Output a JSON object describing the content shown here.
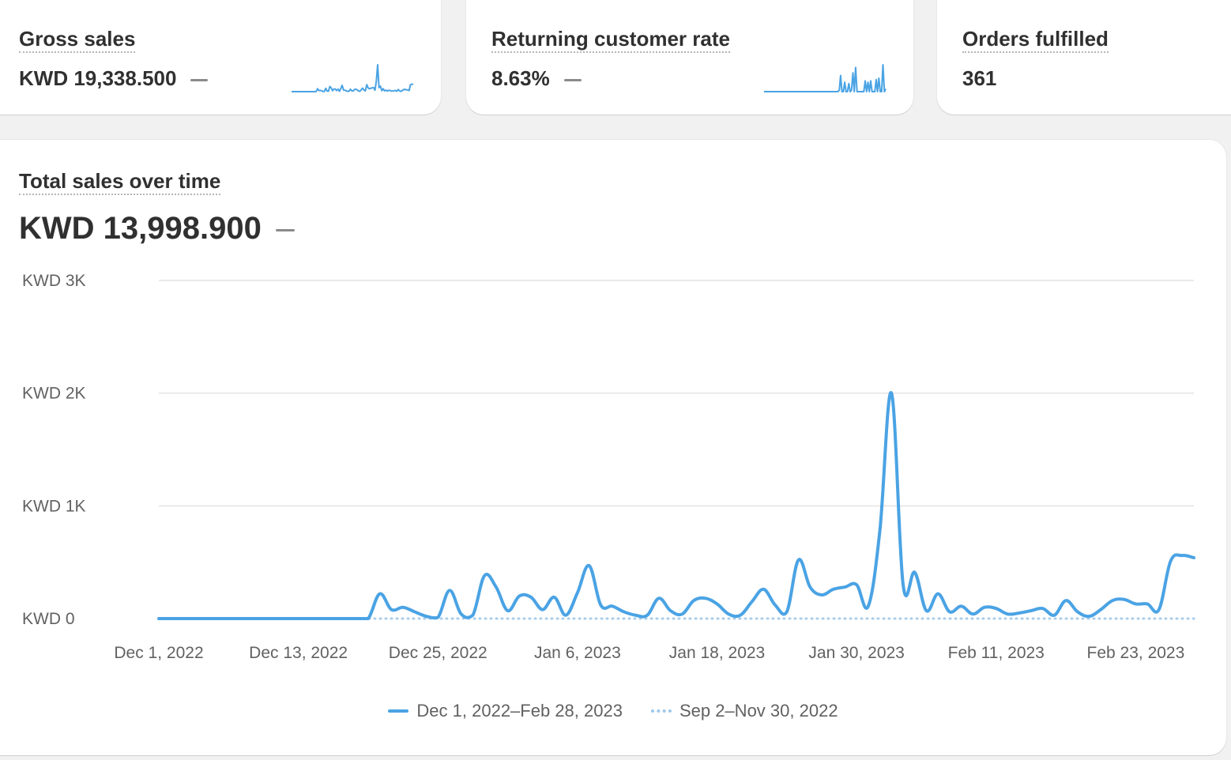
{
  "colors": {
    "series_current": "#4aa3e4",
    "series_previous": "#a9cdea",
    "grid": "#e3e3e3"
  },
  "metrics": [
    {
      "title": "Gross sales",
      "value": "KWD 19,338.500",
      "trend": "—"
    },
    {
      "title": "Returning customer rate",
      "value": "8.63%",
      "trend": "—"
    },
    {
      "title": "Orders fulfilled",
      "value": "361"
    }
  ],
  "main": {
    "title": "Total sales over time",
    "value": "KWD 13,998.900",
    "trend": "—"
  },
  "legend": [
    {
      "label": "Dec 1, 2022–Feb 28, 2023",
      "style": "solid"
    },
    {
      "label": "Sep 2–Nov 30, 2022",
      "style": "dotted"
    }
  ],
  "chart_data": {
    "type": "line",
    "title": "Total sales over time",
    "xlabel": "",
    "ylabel": "",
    "y_ticks": [
      "KWD 0",
      "KWD 1K",
      "KWD 2K",
      "KWD 3K"
    ],
    "ylim": [
      0,
      3000
    ],
    "x_ticks": [
      "Dec 1, 2022",
      "Dec 13, 2022",
      "Dec 25, 2022",
      "Jan 6, 2023",
      "Jan 18, 2023",
      "Jan 30, 2023",
      "Feb 11, 2023",
      "Feb 23, 2023"
    ],
    "grid": true,
    "legend_position": "bottom-center",
    "x": [
      "Dec 1",
      "Dec 2",
      "Dec 3",
      "Dec 4",
      "Dec 5",
      "Dec 6",
      "Dec 7",
      "Dec 8",
      "Dec 9",
      "Dec 10",
      "Dec 11",
      "Dec 12",
      "Dec 13",
      "Dec 14",
      "Dec 15",
      "Dec 16",
      "Dec 17",
      "Dec 18",
      "Dec 19",
      "Dec 20",
      "Dec 21",
      "Dec 22",
      "Dec 23",
      "Dec 24",
      "Dec 25",
      "Dec 26",
      "Dec 27",
      "Dec 28",
      "Dec 29",
      "Dec 30",
      "Dec 31",
      "Jan 1",
      "Jan 2",
      "Jan 3",
      "Jan 4",
      "Jan 5",
      "Jan 6",
      "Jan 7",
      "Jan 8",
      "Jan 9",
      "Jan 10",
      "Jan 11",
      "Jan 12",
      "Jan 13",
      "Jan 14",
      "Jan 15",
      "Jan 16",
      "Jan 17",
      "Jan 18",
      "Jan 19",
      "Jan 20",
      "Jan 21",
      "Jan 22",
      "Jan 23",
      "Jan 24",
      "Jan 25",
      "Jan 26",
      "Jan 27",
      "Jan 28",
      "Jan 29",
      "Jan 30",
      "Jan 31",
      "Feb 1",
      "Feb 2",
      "Feb 3",
      "Feb 4",
      "Feb 5",
      "Feb 6",
      "Feb 7",
      "Feb 8",
      "Feb 9",
      "Feb 10",
      "Feb 11",
      "Feb 12",
      "Feb 13",
      "Feb 14",
      "Feb 15",
      "Feb 16",
      "Feb 17",
      "Feb 18",
      "Feb 19",
      "Feb 20",
      "Feb 21",
      "Feb 22",
      "Feb 23",
      "Feb 24",
      "Feb 25",
      "Feb 26",
      "Feb 27",
      "Feb 28"
    ],
    "series": [
      {
        "name": "Dec 1, 2022–Feb 28, 2023",
        "style": "solid",
        "values": [
          0,
          0,
          0,
          0,
          0,
          0,
          0,
          0,
          0,
          0,
          0,
          0,
          0,
          0,
          0,
          0,
          0,
          0,
          0,
          220,
          80,
          100,
          60,
          20,
          10,
          250,
          40,
          30,
          380,
          280,
          70,
          200,
          190,
          80,
          190,
          30,
          230,
          470,
          120,
          110,
          60,
          30,
          30,
          180,
          70,
          40,
          160,
          180,
          130,
          40,
          30,
          150,
          260,
          120,
          60,
          520,
          280,
          210,
          260,
          280,
          300,
          110,
          780,
          2000,
          300,
          410,
          70,
          220,
          60,
          110,
          40,
          100,
          90,
          40,
          50,
          70,
          90,
          30,
          160,
          60,
          20,
          80,
          160,
          170,
          130,
          130,
          80,
          510,
          560,
          540
        ]
      },
      {
        "name": "Sep 2–Nov 30, 2022",
        "style": "dotted",
        "values": [
          0,
          0,
          0,
          0,
          0,
          0,
          0,
          0,
          0,
          0,
          0,
          0,
          0,
          0,
          0,
          0,
          0,
          0,
          0,
          0,
          0,
          0,
          0,
          0,
          0,
          0,
          0,
          0,
          0,
          0,
          0,
          0,
          0,
          0,
          0,
          0,
          0,
          0,
          0,
          0,
          0,
          0,
          0,
          0,
          0,
          0,
          0,
          0,
          0,
          0,
          0,
          0,
          0,
          0,
          0,
          0,
          0,
          0,
          0,
          0,
          0,
          0,
          0,
          0,
          0,
          0,
          0,
          0,
          0,
          0,
          0,
          0,
          0,
          0,
          0,
          0,
          0,
          0,
          0,
          0,
          0,
          0,
          0,
          0,
          0,
          0,
          0,
          0,
          0,
          0
        ]
      }
    ]
  },
  "sparklines": {
    "gross_sales": [
      0,
      0,
      0,
      0,
      0,
      0,
      0,
      0,
      0,
      0,
      0,
      0,
      0,
      0,
      0,
      0,
      0,
      0,
      0,
      220,
      80,
      100,
      60,
      20,
      10,
      250,
      40,
      30,
      380,
      280,
      70,
      200,
      190,
      80,
      190,
      30,
      230,
      470,
      120,
      110,
      60,
      30,
      30,
      180,
      70,
      40,
      160,
      180,
      130,
      40,
      30,
      150,
      260,
      120,
      60,
      520,
      280,
      210,
      260,
      280,
      300,
      110,
      780,
      2000,
      300,
      410,
      70,
      220,
      60,
      110,
      40,
      100,
      90,
      40,
      50,
      70,
      90,
      30,
      160,
      60,
      20,
      80,
      160,
      170,
      130,
      130,
      80,
      510,
      560,
      540
    ],
    "returning_rate": [
      0,
      0,
      0,
      0,
      0,
      0,
      0,
      0,
      0,
      0,
      0,
      0,
      0,
      0,
      0,
      0,
      0,
      0,
      0,
      0,
      0,
      0,
      0,
      0,
      0,
      0,
      0,
      0,
      0,
      0,
      0,
      0,
      0,
      0,
      0,
      0,
      0,
      0,
      0,
      0,
      0,
      0,
      0,
      0,
      0,
      0,
      0,
      0,
      0,
      0,
      0,
      0,
      0,
      0,
      0,
      5,
      60,
      0,
      0,
      35,
      0,
      0,
      30,
      0,
      5,
      70,
      0,
      90,
      0,
      0,
      0,
      0,
      0,
      0,
      40,
      0,
      35,
      0,
      40,
      0,
      0,
      0,
      45,
      0,
      50,
      0,
      0,
      100,
      0,
      10
    ]
  }
}
